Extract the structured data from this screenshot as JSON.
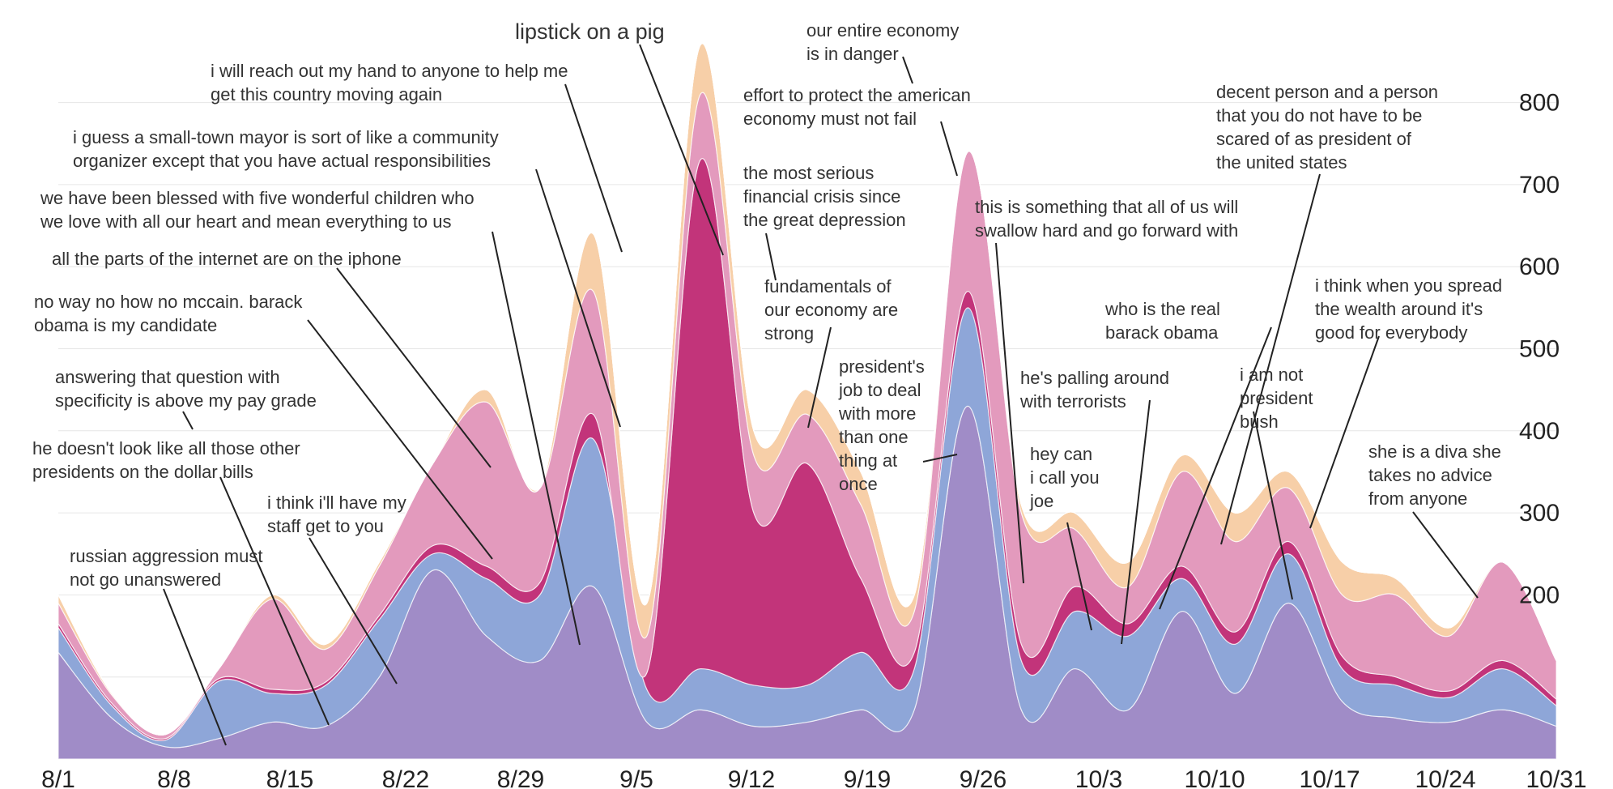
{
  "chart_data": {
    "type": "area",
    "title": "",
    "xlabel": "",
    "ylabel": "",
    "ylim": [
      0,
      860
    ],
    "yticks": [
      "800",
      "700",
      "600",
      "500",
      "400",
      "300",
      "200"
    ],
    "x_labels": [
      "8/1",
      "8/8",
      "8/15",
      "8/22",
      "8/29",
      "9/5",
      "9/12",
      "9/19",
      "9/26",
      "10/3",
      "10/10",
      "10/17",
      "10/24",
      "10/31"
    ],
    "grid": true,
    "colors": {
      "magenta": "#c2347a",
      "pink": "#e39abd",
      "lightpink": "#f2bfd2",
      "rose": "#f08fa3",
      "lavender": "#c6a3d1",
      "purple": "#a08cc7",
      "blue": "#8ea6d8",
      "lightblue": "#b6cceb",
      "peach": "#f7cfa8",
      "cream": "#fbe3c0",
      "periwinkle": "#9aa0d6"
    },
    "total_values": [
      200,
      80,
      30,
      110,
      200,
      140,
      240,
      360,
      450,
      330,
      640,
      190,
      870,
      400,
      450,
      350,
      200,
      740,
      300,
      300,
      240,
      370,
      300,
      350,
      240,
      220,
      160,
      240,
      120
    ],
    "series": [
      {
        "color_key": "purple",
        "values": [
          130,
          50,
          15,
          25,
          45,
          40,
          100,
          230,
          150,
          120,
          210,
          45,
          60,
          40,
          45,
          60,
          60,
          430,
          60,
          110,
          60,
          180,
          80,
          190,
          70,
          50,
          45,
          60,
          40
        ]
      },
      {
        "color_key": "blue",
        "values": [
          30,
          15,
          8,
          70,
          35,
          50,
          70,
          20,
          70,
          80,
          180,
          40,
          50,
          50,
          45,
          70,
          50,
          120,
          60,
          70,
          90,
          40,
          60,
          60,
          40,
          40,
          30,
          50,
          25
        ]
      },
      {
        "color_key": "magenta",
        "values": [
          5,
          3,
          2,
          3,
          5,
          4,
          5,
          10,
          15,
          15,
          30,
          20,
          620,
          210,
          270,
          90,
          20,
          20,
          20,
          30,
          15,
          15,
          15,
          15,
          15,
          10,
          8,
          10,
          8
        ]
      },
      {
        "color_key": "pink",
        "values": [
          25,
          10,
          5,
          12,
          110,
          40,
          60,
          100,
          200,
          115,
          150,
          45,
          80,
          70,
          60,
          90,
          50,
          170,
          160,
          70,
          45,
          115,
          110,
          65,
          75,
          100,
          67,
          120,
          47
        ]
      },
      {
        "color_key": "peach",
        "values": [
          10,
          2,
          0,
          0,
          5,
          6,
          5,
          0,
          15,
          0,
          70,
          40,
          60,
          30,
          30,
          40,
          20,
          0,
          10,
          20,
          30,
          20,
          35,
          20,
          40,
          20,
          10,
          0,
          0
        ]
      }
    ],
    "annotations": [
      {
        "lines": [
          "lipstick on a pig"
        ],
        "big": true
      },
      {
        "lines": [
          "our entire economy",
          "is in danger"
        ]
      },
      {
        "lines": [
          "i will reach out my hand to anyone to help me",
          "get this country moving again"
        ]
      },
      {
        "lines": [
          "effort to protect the american",
          "economy must not fail"
        ]
      },
      {
        "lines": [
          "decent person and a person",
          "that you do not have to be",
          "scared of as president of",
          "the united states"
        ]
      },
      {
        "lines": [
          "i guess a small-town mayor is sort of like a community",
          "organizer except that you have actual responsibilities"
        ]
      },
      {
        "lines": [
          "the most serious",
          "financial crisis since",
          "the great depression"
        ]
      },
      {
        "lines": [
          "we have been blessed with five wonderful children who",
          "we love with all our heart and mean everything to us"
        ]
      },
      {
        "lines": [
          "this is something that all of us will",
          "swallow hard and go forward with"
        ]
      },
      {
        "lines": [
          "all the parts of the internet are on the iphone"
        ]
      },
      {
        "lines": [
          "fundamentals of",
          "our economy are",
          "strong"
        ]
      },
      {
        "lines": [
          "i think when you spread",
          "the wealth around it's",
          "good for everybody"
        ]
      },
      {
        "lines": [
          "no way no how no mccain. barack",
          "obama is my candidate"
        ]
      },
      {
        "lines": [
          "who is the real",
          "barack obama"
        ]
      },
      {
        "lines": [
          "president's",
          "job to deal",
          "with more",
          "than one",
          "thing at",
          "once"
        ]
      },
      {
        "lines": [
          "answering that question with",
          "specificity is above my pay grade"
        ]
      },
      {
        "lines": [
          "he's palling around",
          "with terrorists"
        ]
      },
      {
        "lines": [
          "i am not",
          "president",
          "bush"
        ]
      },
      {
        "lines": [
          "he doesn't look like all those other",
          "presidents on the dollar bills"
        ]
      },
      {
        "lines": [
          "hey can",
          "i call you",
          "joe"
        ]
      },
      {
        "lines": [
          "she is a diva she",
          "takes no advice",
          "from anyone"
        ]
      },
      {
        "lines": [
          "i think i'll have my",
          "staff get to you"
        ]
      },
      {
        "lines": [
          "russian aggression must",
          "not go unanswered"
        ]
      }
    ]
  }
}
